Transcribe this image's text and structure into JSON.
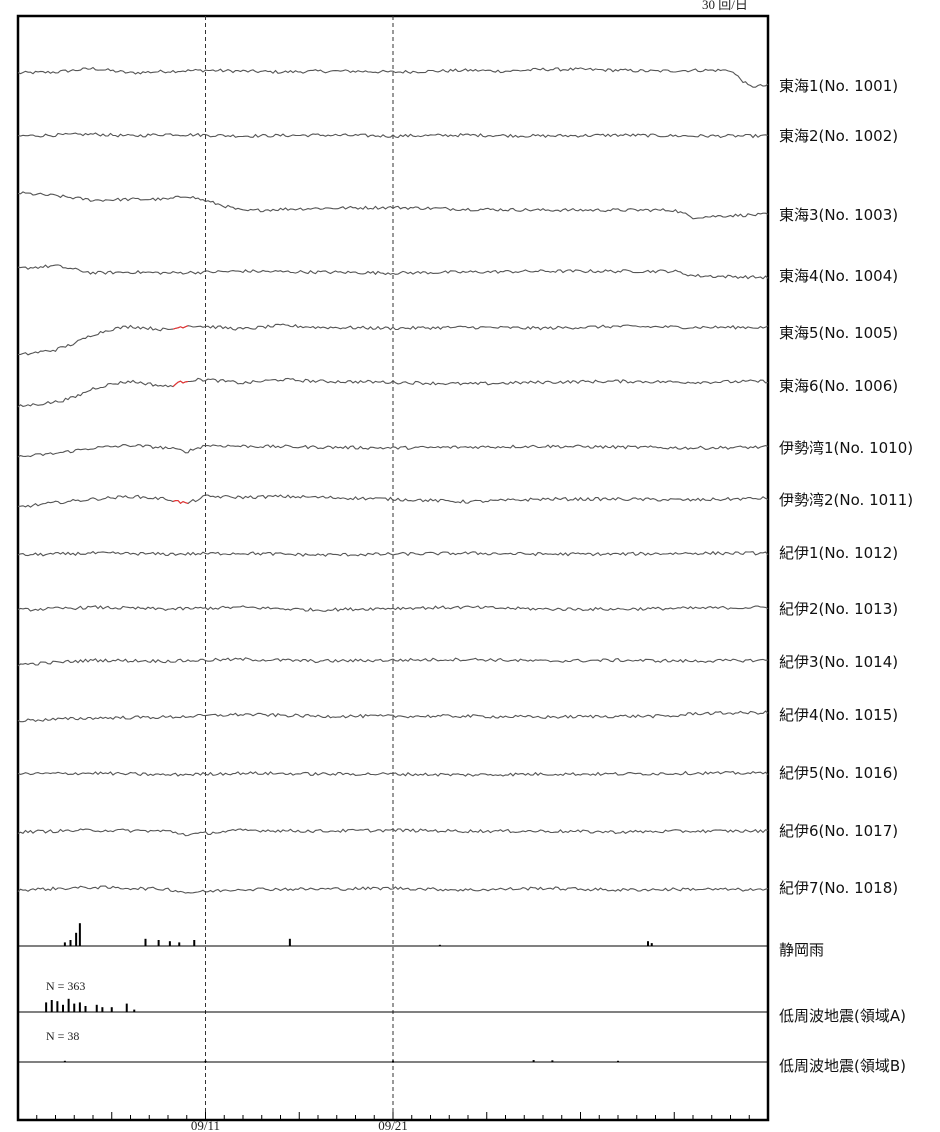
{
  "header": {
    "left_text": "",
    "right_text": "30 回/日"
  },
  "chart_data": {
    "type": "line",
    "title": "",
    "xlabel": "",
    "ylabel": "",
    "x_tick_labels": [
      "09/11",
      "09/21"
    ],
    "vertical_reference_dates": [
      "09/11",
      "09/21"
    ],
    "grid": false,
    "series": [
      {
        "name": "東海1(No. 1001)",
        "color": "#555555",
        "x": [
          0,
          2,
          4,
          6,
          8,
          10,
          12,
          14,
          16,
          18,
          20,
          22,
          24,
          26,
          28,
          30,
          32,
          34,
          36,
          38,
          39,
          40
        ],
        "values": [
          0,
          0.1,
          0.5,
          0,
          0.2,
          0.3,
          0.2,
          0.1,
          0.2,
          0.2,
          0.1,
          0.2,
          0.3,
          0.2,
          0.4,
          0.4,
          0.3,
          0.2,
          0.3,
          0.3,
          -1.5,
          -1.4
        ]
      },
      {
        "name": "東海2(No. 1002)",
        "color": "#555555",
        "x": [
          0,
          4,
          6,
          8,
          12,
          16,
          20,
          24,
          28,
          32,
          36,
          40
        ],
        "values": [
          0,
          0.2,
          0,
          0.2,
          0,
          0.1,
          0,
          0.1,
          0,
          0.1,
          0,
          0
        ]
      },
      {
        "name": "東海3(No. 1003)",
        "color": "#555555",
        "x": [
          0,
          2,
          4,
          6,
          8,
          9,
          12,
          14,
          16,
          20,
          24,
          28,
          32,
          35,
          36,
          38,
          40
        ],
        "values": [
          2,
          1.7,
          1.2,
          1.3,
          1.3,
          1.7,
          0,
          0.2,
          0.3,
          0.4,
          0.2,
          0.1,
          0.1,
          0.1,
          -0.7,
          -0.5,
          -0.4
        ]
      },
      {
        "name": "東海4(No. 1004)",
        "color": "#555555",
        "x": [
          0,
          2,
          4,
          6,
          8,
          12,
          16,
          20,
          24,
          28,
          32,
          35,
          36,
          40
        ],
        "values": [
          0.5,
          0.8,
          0,
          0.1,
          0,
          0.2,
          0.1,
          0,
          0.1,
          0.2,
          0.2,
          0.2,
          -0.3,
          -0.5
        ]
      },
      {
        "name": "東海5(No. 1005)",
        "color": "#555555",
        "x": [
          0,
          2,
          3,
          4,
          5,
          6,
          8,
          9,
          10,
          12,
          14,
          16,
          20,
          24,
          28,
          32,
          36,
          40
        ],
        "values": [
          -2.8,
          -2.2,
          -1.5,
          -0.5,
          0.1,
          0.4,
          0,
          0.5,
          0.4,
          0.1,
          0.5,
          0.3,
          0.2,
          0.3,
          0.2,
          0.4,
          0.3,
          0.3
        ]
      },
      {
        "name": "東海6(No. 1006)",
        "color": "#555555",
        "x": [
          0,
          2,
          3,
          4,
          5,
          6,
          8,
          9,
          10,
          12,
          14,
          16,
          20,
          24,
          28,
          32,
          36,
          40
        ],
        "values": [
          -2.5,
          -2,
          -1.5,
          -0.5,
          0,
          0.3,
          -0.3,
          0.4,
          0.5,
          0.1,
          0.5,
          0.3,
          0.2,
          0,
          0.2,
          0.3,
          0.2,
          0.3
        ]
      },
      {
        "name": "伊勢湾1(No. 1010)",
        "color": "#555555",
        "x": [
          0,
          2,
          4,
          6,
          8,
          9,
          10,
          12,
          16,
          20,
          24,
          28,
          32,
          36,
          40
        ],
        "values": [
          -1,
          -0.6,
          0,
          0.3,
          0,
          -0.4,
          0.3,
          0.2,
          0.1,
          0,
          0.1,
          0.2,
          0.1,
          0,
          0.1
        ]
      },
      {
        "name": "伊勢湾2(No. 1011)",
        "color": "#555555",
        "x": [
          0,
          2,
          4,
          6,
          8,
          9,
          10,
          12,
          14,
          16,
          20,
          24,
          28,
          32,
          36,
          40
        ],
        "values": [
          -0.8,
          -0.3,
          0.1,
          0.4,
          0.1,
          -0.4,
          0.4,
          0.3,
          0.4,
          0.3,
          0.1,
          -0.2,
          0.1,
          0.1,
          0,
          0.2
        ]
      },
      {
        "name": "紀伊1(No. 1012)",
        "color": "#555555",
        "x": [
          0,
          4,
          8,
          12,
          16,
          20,
          24,
          28,
          32,
          36,
          40
        ],
        "values": [
          0,
          0.2,
          0.1,
          0.2,
          0,
          0.1,
          0.2,
          0.1,
          0.1,
          0.2,
          0.2
        ]
      },
      {
        "name": "紀伊2(No. 1013)",
        "color": "#555555",
        "x": [
          0,
          4,
          8,
          12,
          16,
          20,
          24,
          28,
          32,
          36,
          40
        ],
        "values": [
          0,
          0.3,
          0.1,
          0.3,
          0,
          0.2,
          0.3,
          0.1,
          0.1,
          0.2,
          0.3
        ]
      },
      {
        "name": "紀伊3(No. 1014)",
        "color": "#555555",
        "x": [
          0,
          4,
          8,
          12,
          16,
          20,
          24,
          28,
          32,
          36,
          40
        ],
        "values": [
          -0.3,
          0.2,
          0.1,
          0.3,
          0.1,
          0.2,
          0.3,
          0.1,
          0.2,
          0.1,
          0.2
        ]
      },
      {
        "name": "紀伊4(No. 1015)",
        "color": "#555555",
        "x": [
          0,
          4,
          8,
          12,
          16,
          20,
          24,
          28,
          32,
          35,
          36,
          40
        ],
        "values": [
          -0.3,
          0,
          0.1,
          0.4,
          0.2,
          0.2,
          0.2,
          0.1,
          0.2,
          0.2,
          0.5,
          0.6
        ]
      },
      {
        "name": "紀伊5(No. 1016)",
        "color": "#555555",
        "x": [
          0,
          4,
          8,
          12,
          16,
          20,
          24,
          28,
          32,
          36,
          40
        ],
        "values": [
          0,
          0.1,
          -0.1,
          0.1,
          0,
          0,
          -0.1,
          0,
          0,
          0.1,
          0.1
        ]
      },
      {
        "name": "紀伊6(No. 1017)",
        "color": "#555555",
        "x": [
          0,
          4,
          8,
          9,
          12,
          16,
          20,
          24,
          28,
          32,
          36,
          40
        ],
        "values": [
          0,
          0.2,
          0.1,
          -0.3,
          0.2,
          0.1,
          0.2,
          0.1,
          0.1,
          0,
          0.1,
          0.1
        ]
      },
      {
        "name": "紀伊7(No. 1018)",
        "color": "#555555",
        "x": [
          0,
          4,
          8,
          9,
          12,
          16,
          20,
          24,
          28,
          32,
          36,
          40
        ],
        "values": [
          0,
          0.3,
          0.1,
          -0.3,
          0.1,
          0.1,
          0.2,
          0,
          0.2,
          0,
          0.1,
          0
        ]
      }
    ],
    "highlight_color": "#ee3333",
    "bar_panels": [
      {
        "name": "静岡雨",
        "count_label": "",
        "color": "#000000",
        "bars": [
          [
            2.5,
            0.15
          ],
          [
            2.8,
            0.25
          ],
          [
            3.1,
            0.55
          ],
          [
            3.3,
            0.95
          ],
          [
            6.8,
            0.3
          ],
          [
            7.5,
            0.25
          ],
          [
            8.1,
            0.2
          ],
          [
            8.6,
            0.15
          ],
          [
            9.4,
            0.25
          ],
          [
            14.5,
            0.3
          ],
          [
            22.5,
            0.05
          ],
          [
            33.6,
            0.2
          ],
          [
            33.8,
            0.12
          ]
        ]
      },
      {
        "name": "低周波地震(領域A)",
        "count_label": "N = 363",
        "color": "#000000",
        "bars": [
          [
            1.5,
            0.4
          ],
          [
            1.8,
            0.5
          ],
          [
            2.1,
            0.45
          ],
          [
            2.4,
            0.3
          ],
          [
            2.7,
            0.55
          ],
          [
            3.0,
            0.35
          ],
          [
            3.3,
            0.4
          ],
          [
            3.6,
            0.25
          ],
          [
            4.2,
            0.3
          ],
          [
            4.5,
            0.2
          ],
          [
            5.0,
            0.2
          ],
          [
            5.8,
            0.35
          ],
          [
            6.2,
            0.1
          ]
        ]
      },
      {
        "name": "低周波地震(領域B)",
        "count_label": "N = 38",
        "color": "#000000",
        "bars": [
          [
            2.5,
            0.05
          ],
          [
            10,
            0.05
          ],
          [
            20,
            0.06
          ],
          [
            27.5,
            0.08
          ],
          [
            28.5,
            0.07
          ],
          [
            32,
            0.05
          ]
        ]
      }
    ]
  }
}
